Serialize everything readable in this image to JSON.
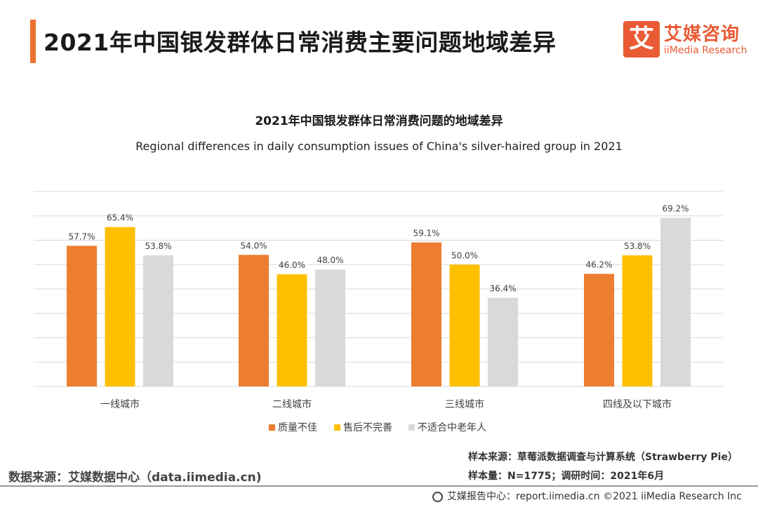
{
  "header": {
    "title": "2021年中国银发群体日常消费主要问题地域差异",
    "logo_mark": "艾",
    "logo_cn": "艾媒咨询",
    "logo_en": "iiMedia Research"
  },
  "colors": {
    "accent": "#ed7231",
    "series": [
      "#ed7d31",
      "#ffc000",
      "#d9d9d9"
    ],
    "grid": "#d9d9d9",
    "text": "#404040"
  },
  "chart_data": {
    "type": "bar",
    "title": "2021年中国银发群体日常消费问题的地域差异",
    "subtitle": "Regional differences in daily consumption issues of China's silver-haired group in 2021",
    "categories": [
      "一线城市",
      "二线城市",
      "三线城市",
      "四线及以下城市"
    ],
    "series": [
      {
        "name": "质量不佳",
        "values": [
          57.7,
          54.0,
          59.1,
          46.2
        ]
      },
      {
        "name": "售后不完善",
        "values": [
          65.4,
          46.0,
          50.0,
          53.8
        ]
      },
      {
        "name": "不适合中老年人",
        "values": [
          53.8,
          48.0,
          36.4,
          69.2
        ]
      }
    ],
    "ylim": [
      0,
      80
    ],
    "grid": true,
    "legend": "bottom",
    "value_suffix": "%"
  },
  "footer": {
    "data_source": "数据来源：艾媒数据中心（data.iimedia.cn)",
    "sample_source": "样本来源：草莓派数据调查与计算系统（Strawberry Pie）",
    "sample_size": "样本量：N=1775；调研时间：2021年6月",
    "report_center": "艾媒报告中心：report.iimedia.cn   ©2021  iiMedia Research  Inc"
  }
}
